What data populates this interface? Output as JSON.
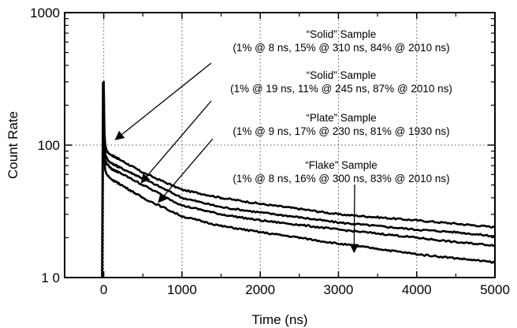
{
  "chart_data": {
    "type": "line",
    "title": "",
    "xlabel": "Time (ns)",
    "ylabel": "Count Rate",
    "xlim": [
      -500,
      5000
    ],
    "ylim": [
      10,
      1000
    ],
    "y_scale": "log",
    "x_ticks": [
      0,
      1000,
      2000,
      3000,
      4000,
      5000
    ],
    "x_tick_labels": [
      "0",
      "1000",
      "2000",
      "3000",
      "4000",
      "5000"
    ],
    "y_ticks": [
      10,
      100,
      1000
    ],
    "y_tick_labels": [
      "1 0",
      "100",
      "1000"
    ],
    "grid": "dotted, major ticks only",
    "legend": "none",
    "series": [
      {
        "x": [
          0,
          10,
          20,
          40,
          60,
          100,
          200,
          500,
          1000,
          1500,
          2000,
          2500,
          3000,
          3500,
          4000,
          4500,
          5000
        ],
        "y": [
          300,
          120,
          100,
          90,
          87,
          84,
          78,
          62,
          46,
          40,
          36,
          33,
          30,
          28.5,
          27,
          25.5,
          24
        ]
      },
      {
        "x": [
          0,
          10,
          20,
          40,
          60,
          100,
          200,
          500,
          1000,
          1500,
          2000,
          2500,
          3000,
          3500,
          4000,
          4500,
          5000
        ],
        "y": [
          240,
          100,
          85,
          80,
          76,
          73,
          68,
          56,
          40,
          34,
          31,
          28.5,
          26,
          24.5,
          23,
          22,
          20.5
        ]
      },
      {
        "x": [
          0,
          10,
          20,
          40,
          60,
          100,
          200,
          500,
          1000,
          1500,
          2000,
          2500,
          3000,
          3500,
          4000,
          4500,
          5000
        ],
        "y": [
          200,
          90,
          76,
          72,
          70,
          66,
          62,
          50,
          35,
          30,
          27,
          25,
          23,
          21.5,
          20,
          18.5,
          17.5
        ]
      },
      {
        "x": [
          0,
          10,
          20,
          40,
          60,
          100,
          200,
          500,
          1000,
          1500,
          2000,
          2500,
          3000,
          3500,
          4000,
          4500,
          5000
        ],
        "y": [
          170,
          75,
          64,
          60,
          58,
          55,
          51,
          40,
          29,
          24.5,
          22,
          20,
          18,
          16.5,
          15,
          14,
          13
        ]
      }
    ],
    "annotations": [
      {
        "title": "“Solid” Sample",
        "detail": "(1% @ 8 ns, 15% @ 310 ns, 84% @ 2010 ns)",
        "arrow_to": [
          150,
          110
        ]
      },
      {
        "title": "“Solid” Sample",
        "detail": "(1% @ 19 ns, 11% @ 245 ns, 87% @ 2010 ns)",
        "arrow_to": [
          480,
          52
        ]
      },
      {
        "title": "“Plate” Sample",
        "detail": "(1% @ 9 ns, 17% @ 230 ns, 81% @ 1930 ns)",
        "arrow_to": [
          700,
          37
        ]
      },
      {
        "title": "“Flake” Sample",
        "detail": "(1% @ 8 ns, 16% @ 300 ns, 83% @ 2010 ns)",
        "arrow_to": [
          3200,
          15.5
        ]
      }
    ]
  }
}
